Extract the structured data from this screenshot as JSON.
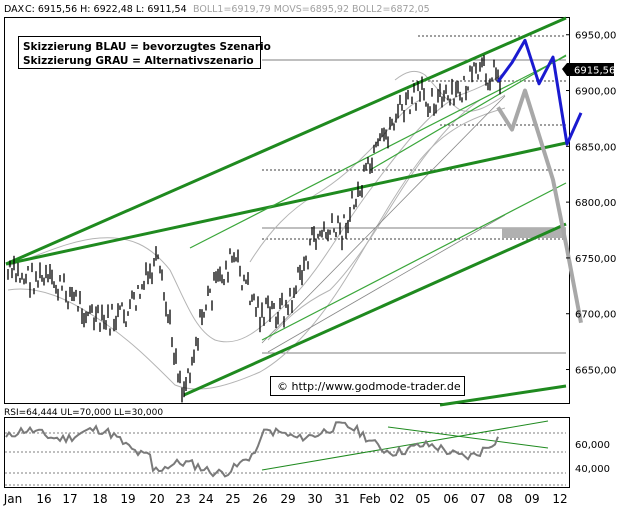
{
  "header": {
    "instrument": "DAX",
    "stats": "C: 6915,56 H: 6922,48 L: 6911,54",
    "indicators": "BOLL1=6919,79 MOVS=6895,92 BOLL2=6872,05"
  },
  "legend": {
    "line1": "Skizzierung BLAU = bevorzugtes Szenario",
    "line2": "Skizzierung GRAU = Alternativszenario"
  },
  "copyright": "© http://www.godmode-trader.de",
  "last_price_label": "6915,56",
  "rsi_header": "RSI=64,444 UL=70,000 LL=30,000",
  "colors": {
    "price": "#000000",
    "bollinger": "#b4b4b4",
    "trend_thick": "#1f8a1f",
    "trend_thin": "#3aa63a",
    "scenario_blue": "#1a1ad0",
    "scenario_gray": "#a8a8a8",
    "rsi": "#7a7a7a",
    "price_tag_bg": "#000000",
    "price_tag_fg": "#ffffff"
  },
  "chart_data": [
    {
      "type": "ohlc",
      "y_axis_position": "right",
      "ylim": [
        6620,
        6965
      ],
      "y_ticks": [
        6650,
        6700,
        6750,
        6800,
        6850,
        6900,
        6950
      ],
      "y_tick_labels": [
        "6650,00",
        "6700,00",
        "6750,00",
        "6800,00",
        "6850,00",
        "6900,00",
        "6950,00"
      ],
      "x_tick_labels": [
        "Jan",
        "16",
        "17",
        "18",
        "19",
        "20",
        "23",
        "24",
        "25",
        "26",
        "29",
        "30",
        "31",
        "Feb",
        "02",
        "05",
        "06",
        "07",
        "08",
        "09",
        "12"
      ],
      "price_path_approx": [
        {
          "x": "Jan",
          "y": 6735
        },
        {
          "x": "16",
          "y": 6730
        },
        {
          "x": "17",
          "y": 6718
        },
        {
          "x": "18",
          "y": 6690
        },
        {
          "x": "19",
          "y": 6700
        },
        {
          "x": "20",
          "y": 6745
        },
        {
          "x": "23",
          "y": 6630
        },
        {
          "x": "24",
          "y": 6710
        },
        {
          "x": "25",
          "y": 6750
        },
        {
          "x": "26",
          "y": 6700
        },
        {
          "x": "29",
          "y": 6705
        },
        {
          "x": "30",
          "y": 6770
        },
        {
          "x": "31",
          "y": 6775
        },
        {
          "x": "Feb",
          "y": 6830
        },
        {
          "x": "02",
          "y": 6880
        },
        {
          "x": "05",
          "y": 6895
        },
        {
          "x": "06",
          "y": 6890
        },
        {
          "x": "07",
          "y": 6915
        }
      ],
      "scenarios": {
        "blue_preferred": [
          {
            "x": "08",
            "y": 6908
          },
          {
            "x": "08",
            "y": 6925
          },
          {
            "x": "09",
            "y": 6945
          },
          {
            "x": "09",
            "y": 6906
          },
          {
            "x": "12",
            "y": 6930
          },
          {
            "x": "12",
            "y": 6852
          },
          {
            "x": "12",
            "y": 6880
          }
        ],
        "gray_alternative": [
          {
            "x": "08",
            "y": 6885
          },
          {
            "x": "08",
            "y": 6865
          },
          {
            "x": "09",
            "y": 6900
          },
          {
            "x": "12",
            "y": 6820
          },
          {
            "x": "12",
            "y": 6758
          },
          {
            "x": "12",
            "y": 6692
          }
        ]
      }
    },
    {
      "type": "line",
      "name": "RSI",
      "ylim": [
        30,
        70
      ],
      "y_ticks": [
        40,
        60
      ],
      "y_tick_labels": [
        "40,000",
        "60,000"
      ]
    }
  ]
}
